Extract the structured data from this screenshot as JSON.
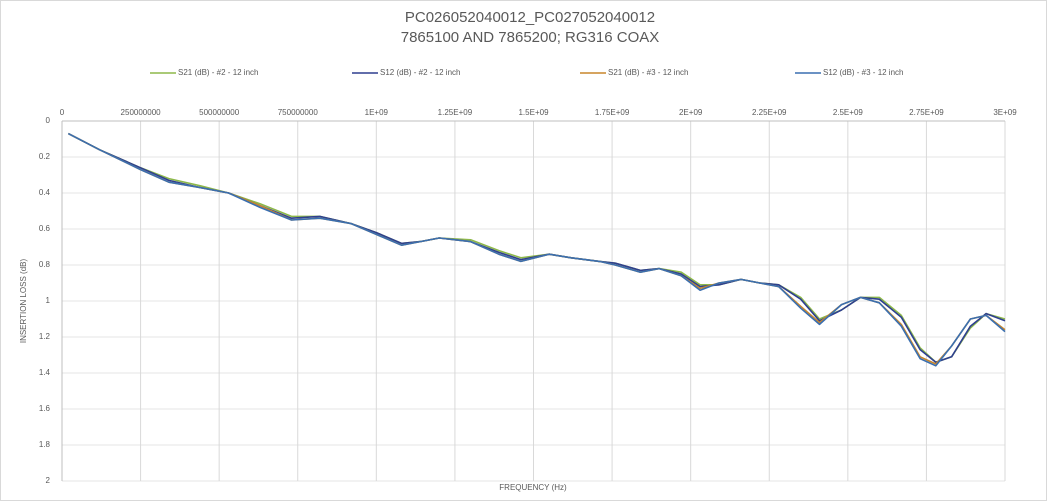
{
  "chart_data": {
    "type": "line",
    "title": "PC026052040012_PC027052040012",
    "subtitle": "7865100 AND 7865200; RG316 COAX",
    "x_label": "FREQUENCY (Hz)",
    "y_label": "INSERTION LOSS (dB)",
    "x": [
      20000000,
      120000000,
      250000000,
      340000000,
      440000000,
      530000000,
      630000000,
      730000000,
      820000000,
      920000000,
      1000000000,
      1080000000,
      1140000000,
      1200000000,
      1300000000,
      1390000000,
      1460000000,
      1550000000,
      1620000000,
      1710000000,
      1760000000,
      1840000000,
      1900000000,
      1970000000,
      2030000000,
      2090000000,
      2160000000,
      2220000000,
      2280000000,
      2350000000,
      2410000000,
      2480000000,
      2540000000,
      2600000000,
      2670000000,
      2730000000,
      2780000000,
      2830000000,
      2890000000,
      2940000000,
      3000000000
    ],
    "series": [
      {
        "name": "S21 (dB) - #2 - 12 inch",
        "color": "#8db84a",
        "values": [
          0.07,
          0.16,
          0.26,
          0.32,
          0.36,
          0.4,
          0.46,
          0.53,
          0.53,
          0.57,
          0.62,
          0.68,
          0.67,
          0.65,
          0.66,
          0.72,
          0.76,
          0.74,
          0.76,
          0.78,
          0.79,
          0.83,
          0.82,
          0.84,
          0.91,
          0.91,
          0.88,
          0.9,
          0.91,
          0.98,
          1.1,
          1.05,
          0.98,
          0.98,
          1.08,
          1.26,
          1.34,
          1.31,
          1.15,
          1.07,
          1.1
        ]
      },
      {
        "name": "S12 (dB) - #2 - 12 inch",
        "color": "#2e3f8f",
        "values": [
          0.07,
          0.16,
          0.26,
          0.33,
          0.37,
          0.4,
          0.47,
          0.54,
          0.53,
          0.57,
          0.62,
          0.68,
          0.67,
          0.65,
          0.67,
          0.73,
          0.77,
          0.74,
          0.76,
          0.78,
          0.79,
          0.83,
          0.82,
          0.85,
          0.92,
          0.91,
          0.88,
          0.9,
          0.91,
          0.99,
          1.11,
          1.05,
          0.98,
          0.99,
          1.09,
          1.27,
          1.34,
          1.31,
          1.14,
          1.07,
          1.11
        ]
      },
      {
        "name": "S21 (dB) - #3 - 12 inch",
        "color": "#c8862c",
        "values": [
          0.07,
          0.16,
          0.27,
          0.34,
          0.37,
          0.4,
          0.47,
          0.55,
          0.54,
          0.57,
          0.63,
          0.69,
          0.67,
          0.65,
          0.67,
          0.74,
          0.78,
          0.74,
          0.76,
          0.78,
          0.8,
          0.84,
          0.82,
          0.86,
          0.93,
          0.9,
          0.88,
          0.9,
          0.92,
          1.03,
          1.12,
          1.02,
          0.98,
          1.01,
          1.13,
          1.31,
          1.35,
          1.25,
          1.1,
          1.08,
          1.16
        ]
      },
      {
        "name": "S12 (dB) - #3 - 12 inch",
        "color": "#3a6fb0",
        "values": [
          0.07,
          0.16,
          0.27,
          0.34,
          0.37,
          0.4,
          0.48,
          0.55,
          0.54,
          0.57,
          0.63,
          0.69,
          0.67,
          0.65,
          0.67,
          0.74,
          0.78,
          0.74,
          0.76,
          0.78,
          0.8,
          0.84,
          0.82,
          0.86,
          0.94,
          0.9,
          0.88,
          0.9,
          0.92,
          1.04,
          1.13,
          1.02,
          0.98,
          1.01,
          1.14,
          1.32,
          1.36,
          1.25,
          1.1,
          1.08,
          1.17
        ]
      }
    ],
    "xlim": [
      0,
      3000000000
    ],
    "xticks": [
      0,
      250000000,
      500000000,
      750000000,
      {
        "value": 1000000000,
        "label": "1E+09"
      },
      {
        "value": 1250000000,
        "label": "1.25E+09"
      },
      {
        "value": 1500000000,
        "label": "1.5E+09"
      },
      {
        "value": 1750000000,
        "label": "1.75E+09"
      },
      {
        "value": 2000000000,
        "label": "2E+09"
      },
      {
        "value": 2250000000,
        "label": "2.25E+09"
      },
      {
        "value": 2500000000,
        "label": "2.5E+09"
      },
      {
        "value": 2750000000,
        "label": "2.75E+09"
      },
      {
        "value": 3000000000,
        "label": "3E+09"
      }
    ],
    "ylim": [
      0,
      2
    ],
    "yticks": [
      0,
      0.2,
      0.4,
      0.6,
      0.8,
      1,
      1.2,
      1.4,
      1.6,
      1.8,
      2
    ],
    "y_reversed": true,
    "x_axis_position": "top",
    "grid": true,
    "legend": "top"
  }
}
